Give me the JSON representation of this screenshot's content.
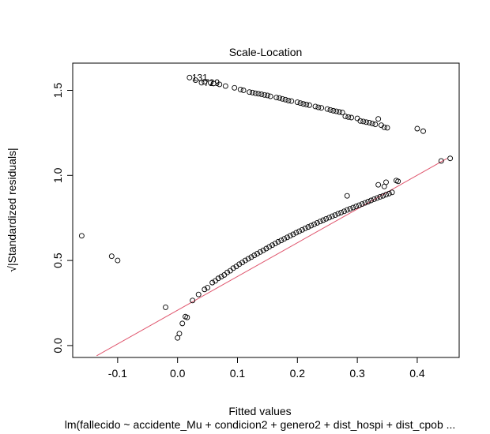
{
  "chart_data": {
    "type": "scatter",
    "title": "Scale-Location",
    "xlabel": "Fitted values",
    "ylabel": "√|Standardized residuals|",
    "subtitle": "lm(fallecido ~ accidente_Mu + condicion2 + genero2 + dist_hospi + dist_cpob ...",
    "xlim": [
      -0.175,
      0.47
    ],
    "ylim": [
      -0.07,
      1.66
    ],
    "x_ticks": [
      -0.1,
      0.0,
      0.1,
      0.2,
      0.3,
      0.4
    ],
    "x_tick_labels": [
      "-0.1",
      "0.0",
      "0.1",
      "0.2",
      "0.3",
      "0.4"
    ],
    "y_ticks": [
      0.0,
      0.5,
      1.0,
      1.5
    ],
    "y_tick_labels": [
      "0.0",
      "0.5",
      "1.0",
      "1.5"
    ],
    "grid": false,
    "point_annotations": [
      {
        "label": "131",
        "x": 0.02,
        "y": 1.575
      },
      {
        "label": "729",
        "x": 0.04,
        "y": 1.545
      }
    ],
    "smooth_line": {
      "color": "#DF536B",
      "description": "red smoother through points",
      "from": [
        -0.135,
        -0.06
      ],
      "to": [
        0.45,
        1.1
      ]
    },
    "series": [
      {
        "marker": "open-circle",
        "upper_band": [
          [
            0.02,
            1.575
          ],
          [
            0.03,
            1.56
          ],
          [
            0.04,
            1.545
          ],
          [
            0.045,
            1.55
          ],
          [
            0.055,
            1.545
          ],
          [
            0.06,
            1.54
          ],
          [
            0.07,
            1.535
          ],
          [
            0.08,
            1.525
          ],
          [
            0.095,
            1.515
          ],
          [
            0.105,
            1.505
          ],
          [
            0.11,
            1.5
          ],
          [
            0.12,
            1.49
          ],
          [
            0.125,
            1.487
          ],
          [
            0.13,
            1.483
          ],
          [
            0.135,
            1.48
          ],
          [
            0.14,
            1.477
          ],
          [
            0.145,
            1.473
          ],
          [
            0.15,
            1.47
          ],
          [
            0.155,
            1.465
          ],
          [
            0.165,
            1.458
          ],
          [
            0.17,
            1.455
          ],
          [
            0.175,
            1.45
          ],
          [
            0.18,
            1.445
          ],
          [
            0.185,
            1.44
          ],
          [
            0.19,
            1.437
          ],
          [
            0.2,
            1.43
          ],
          [
            0.205,
            1.425
          ],
          [
            0.21,
            1.42
          ],
          [
            0.215,
            1.417
          ],
          [
            0.22,
            1.413
          ],
          [
            0.23,
            1.405
          ],
          [
            0.235,
            1.4
          ],
          [
            0.24,
            1.397
          ],
          [
            0.25,
            1.39
          ],
          [
            0.255,
            1.385
          ],
          [
            0.26,
            1.38
          ],
          [
            0.265,
            1.377
          ],
          [
            0.27,
            1.373
          ],
          [
            0.275,
            1.37
          ],
          [
            0.28,
            1.347
          ],
          [
            0.285,
            1.343
          ],
          [
            0.29,
            1.34
          ],
          [
            0.3,
            1.335
          ],
          [
            0.305,
            1.32
          ],
          [
            0.31,
            1.317
          ],
          [
            0.315,
            1.313
          ],
          [
            0.32,
            1.31
          ],
          [
            0.325,
            1.305
          ],
          [
            0.33,
            1.3
          ],
          [
            0.335,
            1.332
          ],
          [
            0.34,
            1.295
          ],
          [
            0.345,
            1.283
          ],
          [
            0.35,
            1.28
          ],
          [
            0.4,
            1.275
          ],
          [
            0.41,
            1.26
          ]
        ],
        "lower_band": [
          [
            -0.16,
            0.645
          ],
          [
            -0.11,
            0.525
          ],
          [
            -0.1,
            0.5
          ],
          [
            -0.02,
            0.225
          ],
          [
            0.0,
            0.045
          ],
          [
            0.003,
            0.07
          ],
          [
            0.008,
            0.13
          ],
          [
            0.013,
            0.17
          ],
          [
            0.016,
            0.165
          ],
          [
            0.025,
            0.265
          ],
          [
            0.035,
            0.3
          ],
          [
            0.045,
            0.33
          ],
          [
            0.05,
            0.34
          ],
          [
            0.058,
            0.37
          ],
          [
            0.063,
            0.38
          ],
          [
            0.068,
            0.395
          ],
          [
            0.073,
            0.405
          ],
          [
            0.078,
            0.415
          ],
          [
            0.083,
            0.43
          ],
          [
            0.088,
            0.44
          ],
          [
            0.093,
            0.455
          ],
          [
            0.098,
            0.465
          ],
          [
            0.103,
            0.478
          ],
          [
            0.108,
            0.488
          ],
          [
            0.113,
            0.5
          ],
          [
            0.118,
            0.51
          ],
          [
            0.123,
            0.52
          ],
          [
            0.128,
            0.53
          ],
          [
            0.133,
            0.54
          ],
          [
            0.138,
            0.55
          ],
          [
            0.143,
            0.56
          ],
          [
            0.148,
            0.57
          ],
          [
            0.153,
            0.58
          ],
          [
            0.158,
            0.59
          ],
          [
            0.163,
            0.6
          ],
          [
            0.168,
            0.61
          ],
          [
            0.173,
            0.618
          ],
          [
            0.178,
            0.627
          ],
          [
            0.183,
            0.636
          ],
          [
            0.188,
            0.645
          ],
          [
            0.193,
            0.654
          ],
          [
            0.198,
            0.663
          ],
          [
            0.203,
            0.672
          ],
          [
            0.208,
            0.68
          ],
          [
            0.213,
            0.689
          ],
          [
            0.218,
            0.697
          ],
          [
            0.223,
            0.705
          ],
          [
            0.228,
            0.713
          ],
          [
            0.233,
            0.721
          ],
          [
            0.238,
            0.729
          ],
          [
            0.243,
            0.737
          ],
          [
            0.248,
            0.745
          ],
          [
            0.253,
            0.752
          ],
          [
            0.258,
            0.76
          ],
          [
            0.263,
            0.767
          ],
          [
            0.268,
            0.775
          ],
          [
            0.273,
            0.782
          ],
          [
            0.278,
            0.789
          ],
          [
            0.283,
            0.797
          ],
          [
            0.288,
            0.804
          ],
          [
            0.293,
            0.811
          ],
          [
            0.298,
            0.818
          ],
          [
            0.303,
            0.825
          ],
          [
            0.308,
            0.832
          ],
          [
            0.313,
            0.839
          ],
          [
            0.318,
            0.846
          ],
          [
            0.323,
            0.853
          ],
          [
            0.328,
            0.86
          ],
          [
            0.333,
            0.867
          ],
          [
            0.338,
            0.874
          ],
          [
            0.343,
            0.88
          ],
          [
            0.348,
            0.887
          ],
          [
            0.353,
            0.893
          ],
          [
            0.358,
            0.9
          ],
          [
            0.283,
            0.88
          ],
          [
            0.335,
            0.945
          ],
          [
            0.345,
            0.935
          ],
          [
            0.348,
            0.96
          ],
          [
            0.365,
            0.97
          ],
          [
            0.368,
            0.965
          ],
          [
            0.44,
            1.085
          ],
          [
            0.455,
            1.1
          ]
        ]
      }
    ]
  }
}
